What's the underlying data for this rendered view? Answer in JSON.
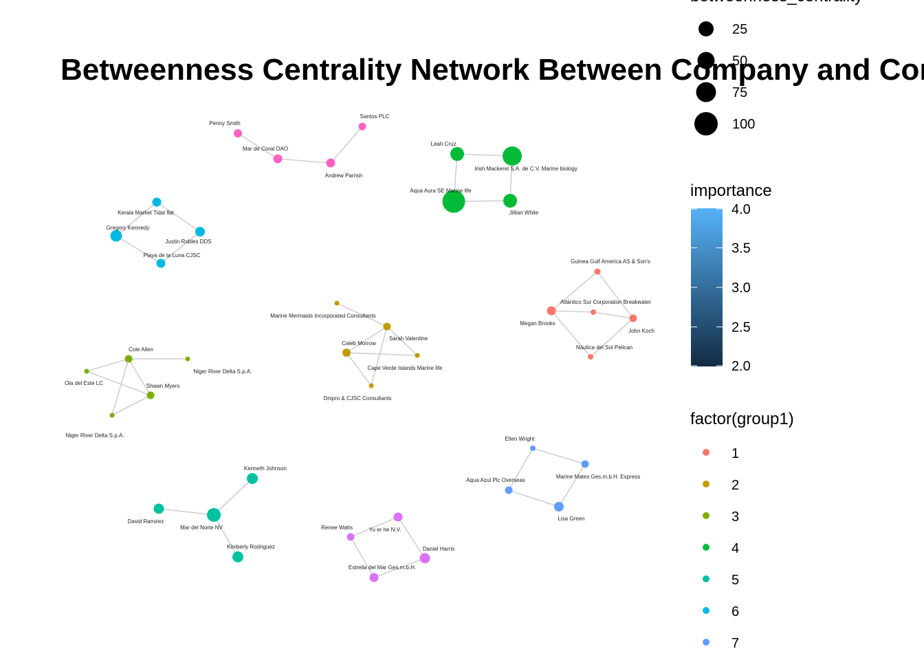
{
  "title": "Betweenness Centrality Network Between Company and Company",
  "legends": {
    "size": {
      "title": "betweenness_centrality",
      "entries": [
        {
          "label": "25",
          "value": 25
        },
        {
          "label": "50",
          "value": 50
        },
        {
          "label": "75",
          "value": 75
        },
        {
          "label": "100",
          "value": 100
        }
      ]
    },
    "importance": {
      "title": "importance",
      "ticks": [
        "4.0",
        "3.5",
        "3.0",
        "2.5",
        "2.0"
      ],
      "tick_values": [
        4.0,
        3.5,
        3.0,
        2.5,
        2.0
      ],
      "range": [
        2.0,
        4.0
      ],
      "color_low": "#132B43",
      "color_high": "#56B1F7"
    },
    "group": {
      "title": "factor(group1)",
      "entries": [
        {
          "label": "1",
          "color": "#F8766D"
        },
        {
          "label": "2",
          "color": "#C49A00"
        },
        {
          "label": "3",
          "color": "#7CAE00"
        },
        {
          "label": "4",
          "color": "#00BA38"
        },
        {
          "label": "5",
          "color": "#00C19F"
        },
        {
          "label": "6",
          "color": "#00B9E3"
        },
        {
          "label": "7",
          "color": "#619CFF"
        }
      ]
    }
  },
  "group_colors": {
    "1": "#F8766D",
    "2": "#C49A00",
    "3": "#7CAE00",
    "4": "#00BA38",
    "5": "#00C19F",
    "6": "#00B9E3",
    "7": "#619CFF",
    "8": "#DB72FB",
    "9": "#FF61C3"
  },
  "nodes": [
    {
      "id": "n1",
      "label": "Penny Smith",
      "group": "9"
    },
    {
      "id": "n2",
      "label": "Mar de Coral OAO",
      "group": "9"
    },
    {
      "id": "n3",
      "label": "Andrew Parrish",
      "group": "9"
    },
    {
      "id": "n4",
      "label": "Santos PLC",
      "group": "9"
    },
    {
      "id": "n5",
      "label": "Leah Cruz",
      "group": "4"
    },
    {
      "id": "n6",
      "label": "Irish Mackerel S.A. de C.V. Marine biology",
      "group": "4"
    },
    {
      "id": "n7",
      "label": "Aqua Aura SE Marine life",
      "group": "4"
    },
    {
      "id": "n8",
      "label": "Jillian White",
      "group": "4"
    },
    {
      "id": "n9",
      "label": "Kerala  Market Tidal flat",
      "group": "6"
    },
    {
      "id": "n10",
      "label": "Gregory Kennedy",
      "group": "6"
    },
    {
      "id": "n11",
      "label": "Justin Robles DDS",
      "group": "6"
    },
    {
      "id": "n12",
      "label": "Playa de la Luna CJSC",
      "group": "6"
    },
    {
      "id": "n13",
      "label": "Guinea Gulf  America AS & Son's",
      "group": "1"
    },
    {
      "id": "n14",
      "label": "Atlántico Sur Corporation Breakwater",
      "group": "1"
    },
    {
      "id": "n15",
      "label": "Megan Brooks",
      "group": "1"
    },
    {
      "id": "n16",
      "label": "John Koch",
      "group": "1"
    },
    {
      "id": "n17",
      "label": "Náutica del Sol Pelican",
      "group": "1"
    },
    {
      "id": "n18",
      "label": "Marine Mermaids Incorporated Consultants",
      "group": "2"
    },
    {
      "id": "n19",
      "label": "Sarah Valentine",
      "group": "2"
    },
    {
      "id": "n20",
      "label": "Caleb Morrow",
      "group": "2"
    },
    {
      "id": "n21",
      "label": "Cape Verde Islands  Marine life",
      "group": "2"
    },
    {
      "id": "n22",
      "label": "Dnipro  & CJSC Consultants",
      "group": "2"
    },
    {
      "id": "n23",
      "label": "Cole Allen",
      "group": "3"
    },
    {
      "id": "n24",
      "label": "Niger River Delta  S.p.A.",
      "group": "3"
    },
    {
      "id": "n25",
      "label": "Ola del Este LC",
      "group": "3"
    },
    {
      "id": "n26",
      "label": "Shawn Myers",
      "group": "3"
    },
    {
      "id": "n27",
      "label": "Niger River Delta  S.p.A.",
      "group": "3"
    },
    {
      "id": "n28",
      "label": "Ellen Wright",
      "group": "7"
    },
    {
      "id": "n29",
      "label": "Marine Mates Ges.m.b.H. Express",
      "group": "7"
    },
    {
      "id": "n30",
      "label": "Aqua Azul Plc Overseas",
      "group": "7"
    },
    {
      "id": "n31",
      "label": "Lisa Green",
      "group": "7"
    },
    {
      "id": "n32",
      "label": "Kenneth Johnson",
      "group": "5"
    },
    {
      "id": "n33",
      "label": "David Ramirez",
      "group": "5"
    },
    {
      "id": "n34",
      "label": "Mar del Norte NV",
      "group": "5"
    },
    {
      "id": "n35",
      "label": "Kimberly Rodriguez",
      "group": "5"
    },
    {
      "id": "n36",
      "label": "Renee Watts",
      "group": "8"
    },
    {
      "id": "n37",
      "label": "Yu er he  N.V.",
      "group": "8"
    },
    {
      "id": "n38",
      "label": "Daniel Harris",
      "group": "8"
    },
    {
      "id": "n39",
      "label": "Estrella del Mar Ges.m.b.H.",
      "group": "8"
    }
  ],
  "edges": [
    [
      "n1",
      "n2"
    ],
    [
      "n2",
      "n3"
    ],
    [
      "n3",
      "n4"
    ],
    [
      "n5",
      "n6"
    ],
    [
      "n5",
      "n7"
    ],
    [
      "n6",
      "n8"
    ],
    [
      "n7",
      "n8"
    ],
    [
      "n9",
      "n10"
    ],
    [
      "n9",
      "n11"
    ],
    [
      "n10",
      "n12"
    ],
    [
      "n11",
      "n12"
    ],
    [
      "n13",
      "n15"
    ],
    [
      "n13",
      "n16"
    ],
    [
      "n15",
      "n14"
    ],
    [
      "n14",
      "n16"
    ],
    [
      "n15",
      "n17"
    ],
    [
      "n17",
      "n16"
    ],
    [
      "n18",
      "n19"
    ],
    [
      "n19",
      "n20"
    ],
    [
      "n19",
      "n21"
    ],
    [
      "n19",
      "n22"
    ],
    [
      "n20",
      "n21"
    ],
    [
      "n20",
      "n22"
    ],
    [
      "n23",
      "n24"
    ],
    [
      "n23",
      "n25"
    ],
    [
      "n23",
      "n26"
    ],
    [
      "n23",
      "n27"
    ],
    [
      "n25",
      "n26"
    ],
    [
      "n26",
      "n27"
    ],
    [
      "n28",
      "n29"
    ],
    [
      "n28",
      "n30"
    ],
    [
      "n29",
      "n31"
    ],
    [
      "n30",
      "n31"
    ],
    [
      "n32",
      "n34"
    ],
    [
      "n33",
      "n34"
    ],
    [
      "n34",
      "n35"
    ],
    [
      "n36",
      "n37"
    ],
    [
      "n36",
      "n39"
    ],
    [
      "n37",
      "n38"
    ],
    [
      "n38",
      "n39"
    ]
  ]
}
